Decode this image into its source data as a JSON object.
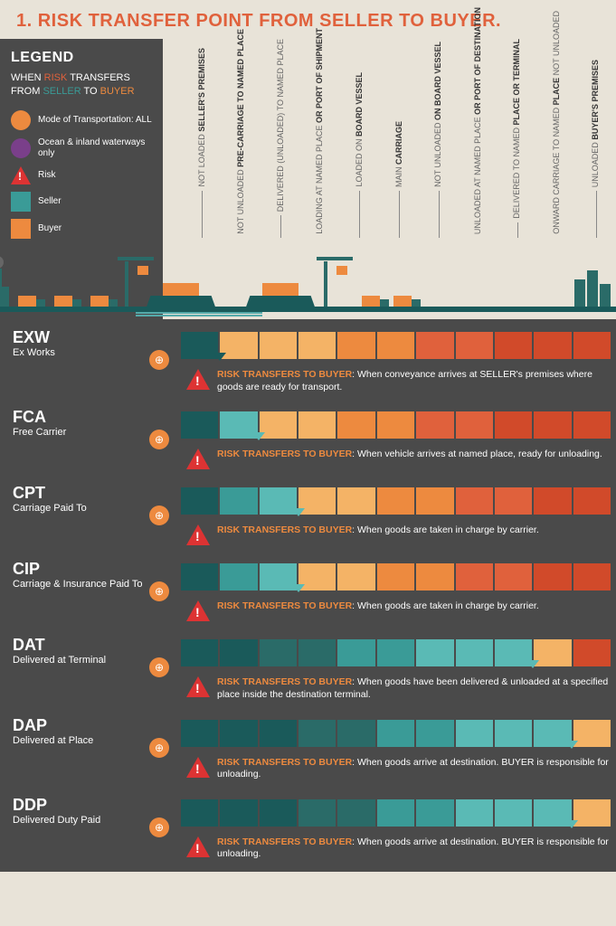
{
  "title": "1. RISK TRANSFER POINT FROM SELLER TO BUYER.",
  "legend": {
    "title": "LEGEND",
    "subtitle_prefix": "WHEN ",
    "subtitle_risk": "RISK",
    "subtitle_mid1": " TRANSFERS FROM ",
    "subtitle_seller": "SELLER",
    "subtitle_mid2": " TO ",
    "subtitle_buyer": "BUYER",
    "items": [
      {
        "icon": "circle",
        "color": "#ed8a3f",
        "text": "Mode of Transportation: ALL"
      },
      {
        "icon": "circle",
        "color": "#7a3f8a",
        "text": "Ocean & inland waterways only"
      },
      {
        "icon": "triangle",
        "color": "#d33",
        "text": "Risk"
      },
      {
        "icon": "square",
        "color": "#3a9b97",
        "text": "Seller"
      },
      {
        "icon": "square",
        "color": "#ed8a3f",
        "text": "Buyer"
      }
    ]
  },
  "stages": [
    {
      "bold": "SELLER'S PREMISES",
      "light": "NOT LOADED"
    },
    {
      "bold": "PRE-CARRIAGE TO NAMED PLACE",
      "light": "NOT UNLOADED"
    },
    {
      "bold": "",
      "light": "DELIVERED (UNLOADED) TO NAMED PLACE",
      "boldpart": "NAMED PLACE"
    },
    {
      "bold": "OR PORT OF SHIPMENT",
      "light": "LOADING AT NAMED PLACE"
    },
    {
      "bold": "BOARD VESSEL",
      "light": "LOADED ON"
    },
    {
      "bold": "CARRIAGE",
      "light": "MAIN"
    },
    {
      "bold": "ON BOARD VESSEL",
      "light": "NOT UNLOADED"
    },
    {
      "bold": "OR PORT OF DESTINATION",
      "light": "UNLOADED AT NAMED PLACE"
    },
    {
      "bold": "PLACE OR TERMINAL",
      "light": "DELIVERED TO NAMED"
    },
    {
      "bold": "PLACE",
      "light": "ONWARD CARRIAGE TO NAMED",
      "extra": "NOT UNLOADED"
    },
    {
      "bold": "BUYER'S PREMISES",
      "light": "UNLOADED"
    }
  ],
  "colors": {
    "seller_gradient": [
      "#1a5a5a",
      "#2a6b68",
      "#3a9b97",
      "#5abab5"
    ],
    "buyer_gradient": [
      "#f4b366",
      "#ed8a3f",
      "#e0613c",
      "#d14a2a"
    ],
    "title": "#e0613c",
    "background": "#e8e3d8",
    "dark_bg": "#4a4a4a"
  },
  "risk_label": "RISK TRANSFERS TO BUYER",
  "terms": [
    {
      "code": "EXW",
      "name": "Ex Works",
      "break": 1,
      "icons": [
        "all"
      ],
      "text": ": When conveyance arrives at SELLER's premises where goods are ready for transport."
    },
    {
      "code": "FCA",
      "name": "Free Carrier",
      "break": 2,
      "icons": [
        "all"
      ],
      "text": ": When vehicle arrives at named place, ready for unloading."
    },
    {
      "code": "CPT",
      "name": "Carriage Paid To",
      "break": 3,
      "icons": [
        "all"
      ],
      "text": ": When goods are taken in charge by carrier."
    },
    {
      "code": "CIP",
      "name": "Carriage & Insurance Paid To",
      "break": 3,
      "icons": [
        "all"
      ],
      "text": ": When goods are taken in charge by carrier."
    },
    {
      "code": "DAT",
      "name": "Delivered at Terminal",
      "break": 9,
      "icons": [
        "all"
      ],
      "text": ": When goods have been delivered & unloaded at a specified place inside the destination terminal."
    },
    {
      "code": "DAP",
      "name": "Delivered at Place",
      "break": 10,
      "icons": [
        "all"
      ],
      "text": ": When goods arrive at destination. BUYER is responsible for unloading."
    },
    {
      "code": "DDP",
      "name": "Delivered Duty Paid",
      "break": 10,
      "icons": [
        "all"
      ],
      "text": ": When goods arrive at destination. BUYER is responsible for unloading."
    }
  ]
}
